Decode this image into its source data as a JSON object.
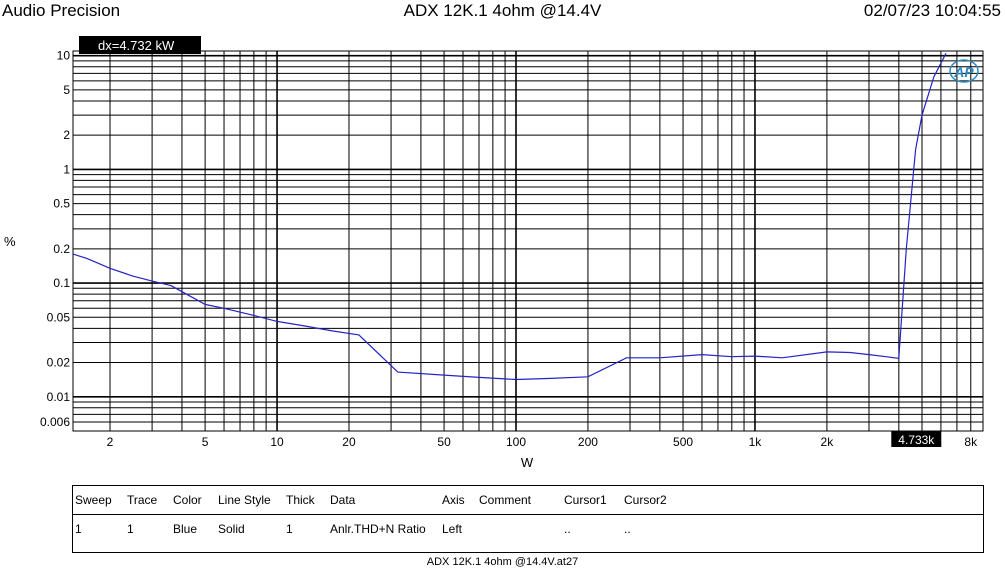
{
  "header": {
    "brand": "Audio Precision",
    "title": "ADX 12K.1 4ohm @14.4V",
    "timestamp": "02/07/23 10:04:55"
  },
  "chart_data": {
    "type": "line",
    "xscale": "log",
    "yscale": "log",
    "xlim": [
      1.4,
      9000
    ],
    "ylim": [
      0.005,
      11
    ],
    "xlabel": "W",
    "ylabel": "%",
    "grid": true,
    "xticks": [
      {
        "v": 2,
        "label": "2"
      },
      {
        "v": 5,
        "label": "5"
      },
      {
        "v": 10,
        "label": "10"
      },
      {
        "v": 20,
        "label": "20"
      },
      {
        "v": 50,
        "label": "50"
      },
      {
        "v": 100,
        "label": "100"
      },
      {
        "v": 200,
        "label": "200"
      },
      {
        "v": 500,
        "label": "500"
      },
      {
        "v": 1000,
        "label": "1k"
      },
      {
        "v": 2000,
        "label": "2k"
      },
      {
        "v": 8000,
        "label": "8k"
      }
    ],
    "yticks": [
      {
        "v": 10,
        "label": "10"
      },
      {
        "v": 5,
        "label": "5"
      },
      {
        "v": 2,
        "label": "2"
      },
      {
        "v": 1,
        "label": "1"
      },
      {
        "v": 0.5,
        "label": "0.5"
      },
      {
        "v": 0.2,
        "label": "0.2"
      },
      {
        "v": 0.1,
        "label": "0.1"
      },
      {
        "v": 0.05,
        "label": "0.05"
      },
      {
        "v": 0.02,
        "label": "0.02"
      },
      {
        "v": 0.01,
        "label": "0.01"
      },
      {
        "v": 0.006,
        "label": "0.006"
      }
    ],
    "cursor_x": {
      "value": 4733,
      "label": "4.733k"
    },
    "readout": "dx=4.732  kW",
    "logo": "AP",
    "series": [
      {
        "color": "#2323c8",
        "x": [
          1.4,
          1.6,
          2,
          2.5,
          3,
          3.6,
          4,
          5,
          6,
          8,
          10,
          13,
          17,
          22,
          32,
          50,
          70,
          100,
          140,
          200,
          290,
          400,
          600,
          800,
          1000,
          1300,
          2000,
          2500,
          3000,
          4000,
          4300,
          4700,
          5000,
          5600,
          6300
        ],
        "y": [
          0.18,
          0.165,
          0.135,
          0.115,
          0.104,
          0.095,
          0.084,
          0.065,
          0.06,
          0.052,
          0.046,
          0.042,
          0.038,
          0.035,
          0.0165,
          0.0155,
          0.0148,
          0.0142,
          0.0145,
          0.015,
          0.022,
          0.022,
          0.0235,
          0.0225,
          0.0228,
          0.022,
          0.0248,
          0.0245,
          0.0235,
          0.0218,
          0.2,
          1.5,
          3.0,
          6.5,
          10.5
        ]
      }
    ]
  },
  "legend": {
    "headers": [
      "Sweep",
      "Trace",
      "Color",
      "Line Style",
      "Thick",
      "Data",
      "Axis",
      "Comment",
      "Cursor1",
      "Cursor2"
    ],
    "rows": [
      [
        "1",
        "1",
        "Blue",
        "Solid",
        "1",
        "Anlr.THD+N Ratio",
        "Left",
        "",
        "..",
        ".."
      ]
    ]
  },
  "footer": "ADX 12K.1 4ohm @14.4V.at27"
}
